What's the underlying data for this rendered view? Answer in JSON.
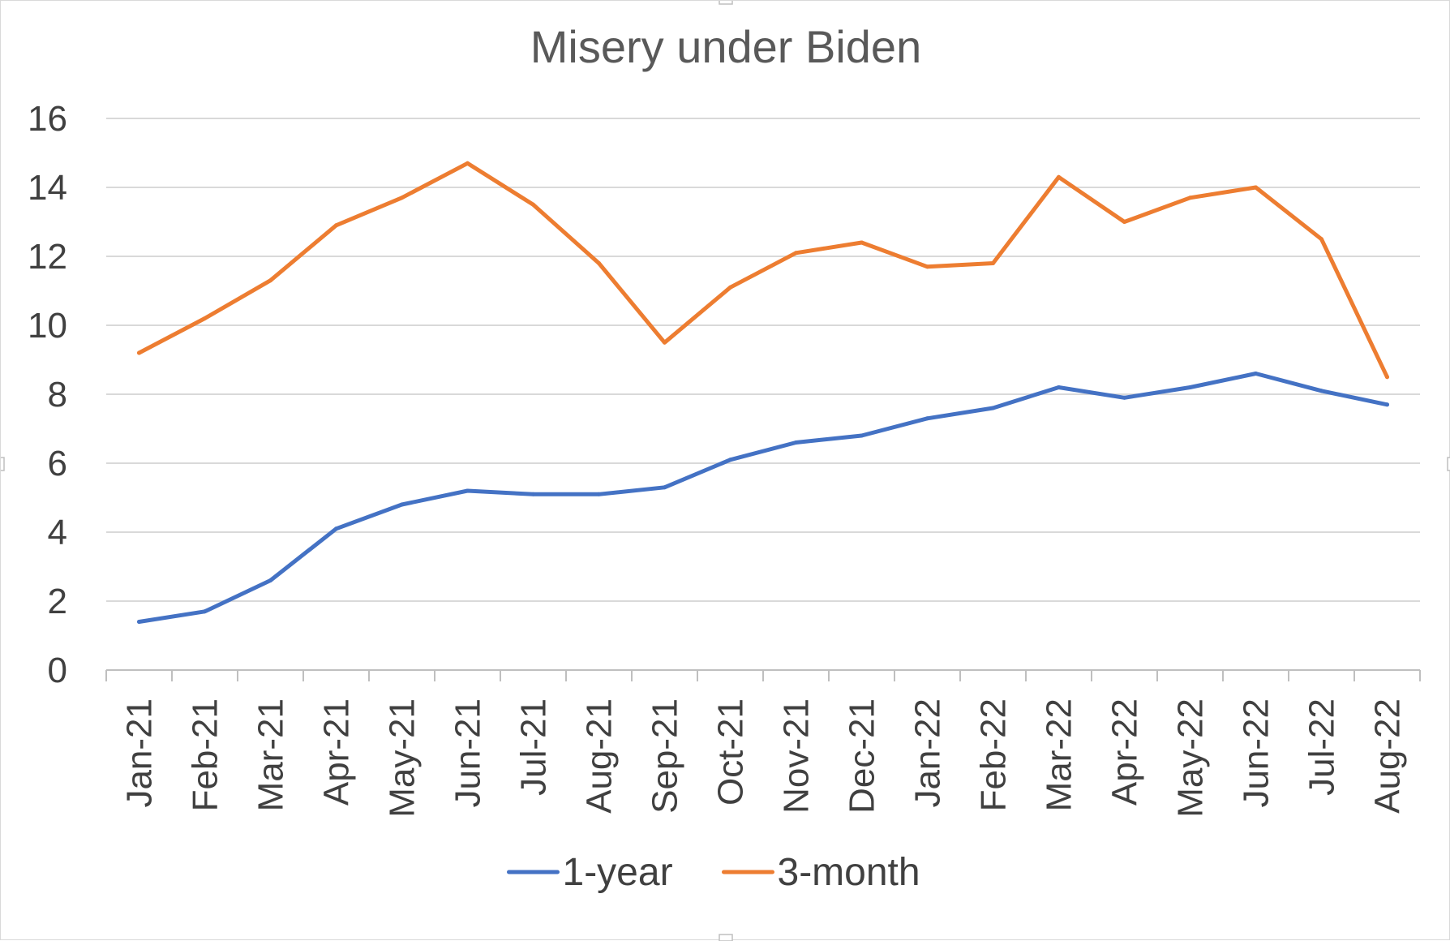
{
  "chart_data": {
    "type": "line",
    "title": "Misery under Biden",
    "xlabel": "",
    "ylabel": "",
    "ylim": [
      0,
      16
    ],
    "yticks": [
      0,
      2,
      4,
      6,
      8,
      10,
      12,
      14,
      16
    ],
    "grid": true,
    "legend_position": "bottom",
    "categories": [
      "Jan-21",
      "Feb-21",
      "Mar-21",
      "Apr-21",
      "May-21",
      "Jun-21",
      "Jul-21",
      "Aug-21",
      "Sep-21",
      "Oct-21",
      "Nov-21",
      "Dec-21",
      "Jan-22",
      "Feb-22",
      "Mar-22",
      "Apr-22",
      "May-22",
      "Jun-22",
      "Jul-22",
      "Aug-22"
    ],
    "series": [
      {
        "name": "1-year",
        "color": "#4472C4",
        "values": [
          1.4,
          1.7,
          2.6,
          4.1,
          4.8,
          5.2,
          5.1,
          5.1,
          5.3,
          6.1,
          6.6,
          6.8,
          7.3,
          7.6,
          8.2,
          7.9,
          8.2,
          8.6,
          8.1,
          7.7
        ]
      },
      {
        "name": "3-month",
        "color": "#ED7D31",
        "values": [
          9.2,
          10.2,
          11.3,
          12.9,
          13.7,
          14.7,
          13.5,
          11.8,
          9.5,
          11.1,
          12.1,
          12.4,
          11.7,
          11.8,
          14.3,
          13.0,
          13.7,
          14.0,
          12.5,
          8.5
        ]
      }
    ]
  }
}
